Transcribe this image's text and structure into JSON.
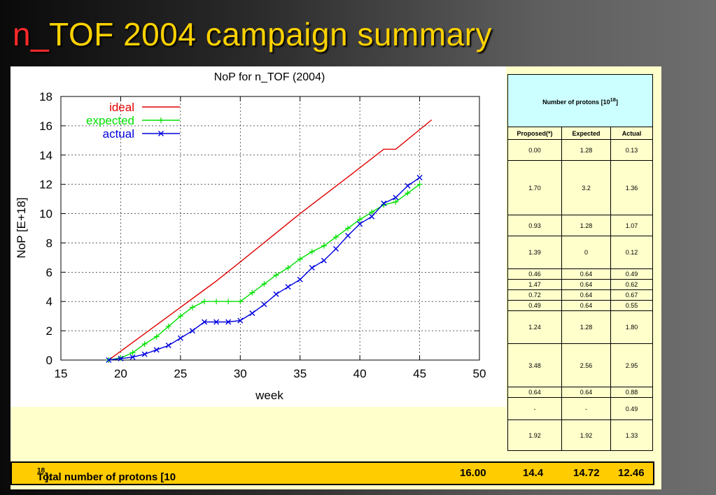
{
  "slide": {
    "title_prefix": "n_",
    "title_rest": "TOF 2004 campaign summary"
  },
  "colors": {
    "title": "#ffd200",
    "title_prefix": "#ff2a2a",
    "panel": "#ffffcc",
    "table_header": "#ccffff",
    "total_bar": "#ffcc00",
    "ideal": "#e00000",
    "expected": "#00e000",
    "actual": "#0000e0"
  },
  "chart_data": {
    "type": "line",
    "title": "NoP for n_TOF (2004)",
    "xlabel": "week",
    "ylabel": "NoP  [E+18]",
    "xlim": [
      15,
      50
    ],
    "ylim": [
      0,
      18
    ],
    "xticks": [
      15,
      20,
      25,
      30,
      35,
      40,
      45,
      50
    ],
    "yticks": [
      0,
      2,
      4,
      6,
      8,
      10,
      12,
      14,
      16,
      18
    ],
    "grid": true,
    "legend_position": "top-left",
    "series": [
      {
        "name": "ideal",
        "color": "#e00000",
        "marker": "none",
        "points": [
          [
            19,
            0
          ],
          [
            25,
            3.6
          ],
          [
            27,
            4.8
          ],
          [
            28,
            5.4
          ],
          [
            30,
            6.7
          ],
          [
            35,
            10.0
          ],
          [
            39,
            12.5
          ],
          [
            42,
            14.4
          ],
          [
            43,
            14.4
          ],
          [
            46,
            16.4
          ]
        ]
      },
      {
        "name": "expected",
        "color": "#00e000",
        "marker": "plus",
        "points": [
          [
            19,
            0
          ],
          [
            20,
            0.15
          ],
          [
            21,
            0.5
          ],
          [
            22,
            1.1
          ],
          [
            23,
            1.6
          ],
          [
            24,
            2.3
          ],
          [
            25,
            3.0
          ],
          [
            26,
            3.6
          ],
          [
            27,
            4.0
          ],
          [
            28,
            4.0
          ],
          [
            29,
            4.0
          ],
          [
            30,
            4.0
          ],
          [
            31,
            4.6
          ],
          [
            32,
            5.2
          ],
          [
            33,
            5.8
          ],
          [
            34,
            6.3
          ],
          [
            35,
            6.9
          ],
          [
            36,
            7.4
          ],
          [
            37,
            7.8
          ],
          [
            38,
            8.4
          ],
          [
            39,
            9.0
          ],
          [
            40,
            9.6
          ],
          [
            41,
            10.1
          ],
          [
            42,
            10.6
          ],
          [
            43,
            10.8
          ],
          [
            44,
            11.4
          ],
          [
            45,
            12.0
          ]
        ]
      },
      {
        "name": "actual",
        "color": "#0000e0",
        "marker": "cross",
        "points": [
          [
            19,
            0
          ],
          [
            20,
            0.1
          ],
          [
            21,
            0.2
          ],
          [
            22,
            0.4
          ],
          [
            23,
            0.7
          ],
          [
            24,
            1.0
          ],
          [
            25,
            1.5
          ],
          [
            26,
            2.0
          ],
          [
            27,
            2.6
          ],
          [
            28,
            2.6
          ],
          [
            29,
            2.6
          ],
          [
            30,
            2.7
          ],
          [
            31,
            3.2
          ],
          [
            32,
            3.8
          ],
          [
            33,
            4.5
          ],
          [
            34,
            5.0
          ],
          [
            35,
            5.5
          ],
          [
            36,
            6.3
          ],
          [
            37,
            6.8
          ],
          [
            38,
            7.6
          ],
          [
            39,
            8.5
          ],
          [
            40,
            9.3
          ],
          [
            41,
            9.8
          ],
          [
            42,
            10.7
          ],
          [
            43,
            11.1
          ],
          [
            44,
            11.9
          ],
          [
            45,
            12.46
          ]
        ]
      }
    ]
  },
  "table": {
    "header": "Number of protons  [10",
    "header_exp": "18",
    "header_suffix": "]",
    "columns": [
      "Proposed(*)",
      "Expected",
      "Actual"
    ],
    "rows": [
      {
        "proposed": "0.00",
        "expected": "1.28",
        "actual": "0.13"
      },
      {
        "proposed": "1.70",
        "expected": "3.2",
        "actual": "1.36"
      },
      {
        "proposed": "0.93",
        "expected": "1.28",
        "actual": "1.07"
      },
      {
        "proposed": "1.39",
        "expected": "0",
        "actual": "0.12"
      },
      {
        "proposed": "0.46",
        "expected": "0.64",
        "actual": "0.49"
      },
      {
        "proposed": "1.47",
        "expected": "0.64",
        "actual": "0.62"
      },
      {
        "proposed": "0.72",
        "expected": "0.64",
        "actual": "0.67"
      },
      {
        "proposed": "0.49",
        "expected": "0.64",
        "actual": "0.55"
      },
      {
        "proposed": "1.24",
        "expected": "1.28",
        "actual": "1.80"
      },
      {
        "proposed": "3.48",
        "expected": "2.56",
        "actual": "2.95"
      },
      {
        "proposed": "0.64",
        "expected": "0.64",
        "actual": "0.88"
      },
      {
        "proposed": "-",
        "expected": "-",
        "actual": "0.49"
      },
      {
        "proposed": "1.92",
        "expected": "1.92",
        "actual": "1.33"
      }
    ]
  },
  "total": {
    "label": "Total number of protons [10",
    "label_exp": "18",
    "label_suffix": "]:",
    "ideal": "16.00",
    "proposed": "14.4",
    "expected": "14.72",
    "actual": "12.46"
  }
}
